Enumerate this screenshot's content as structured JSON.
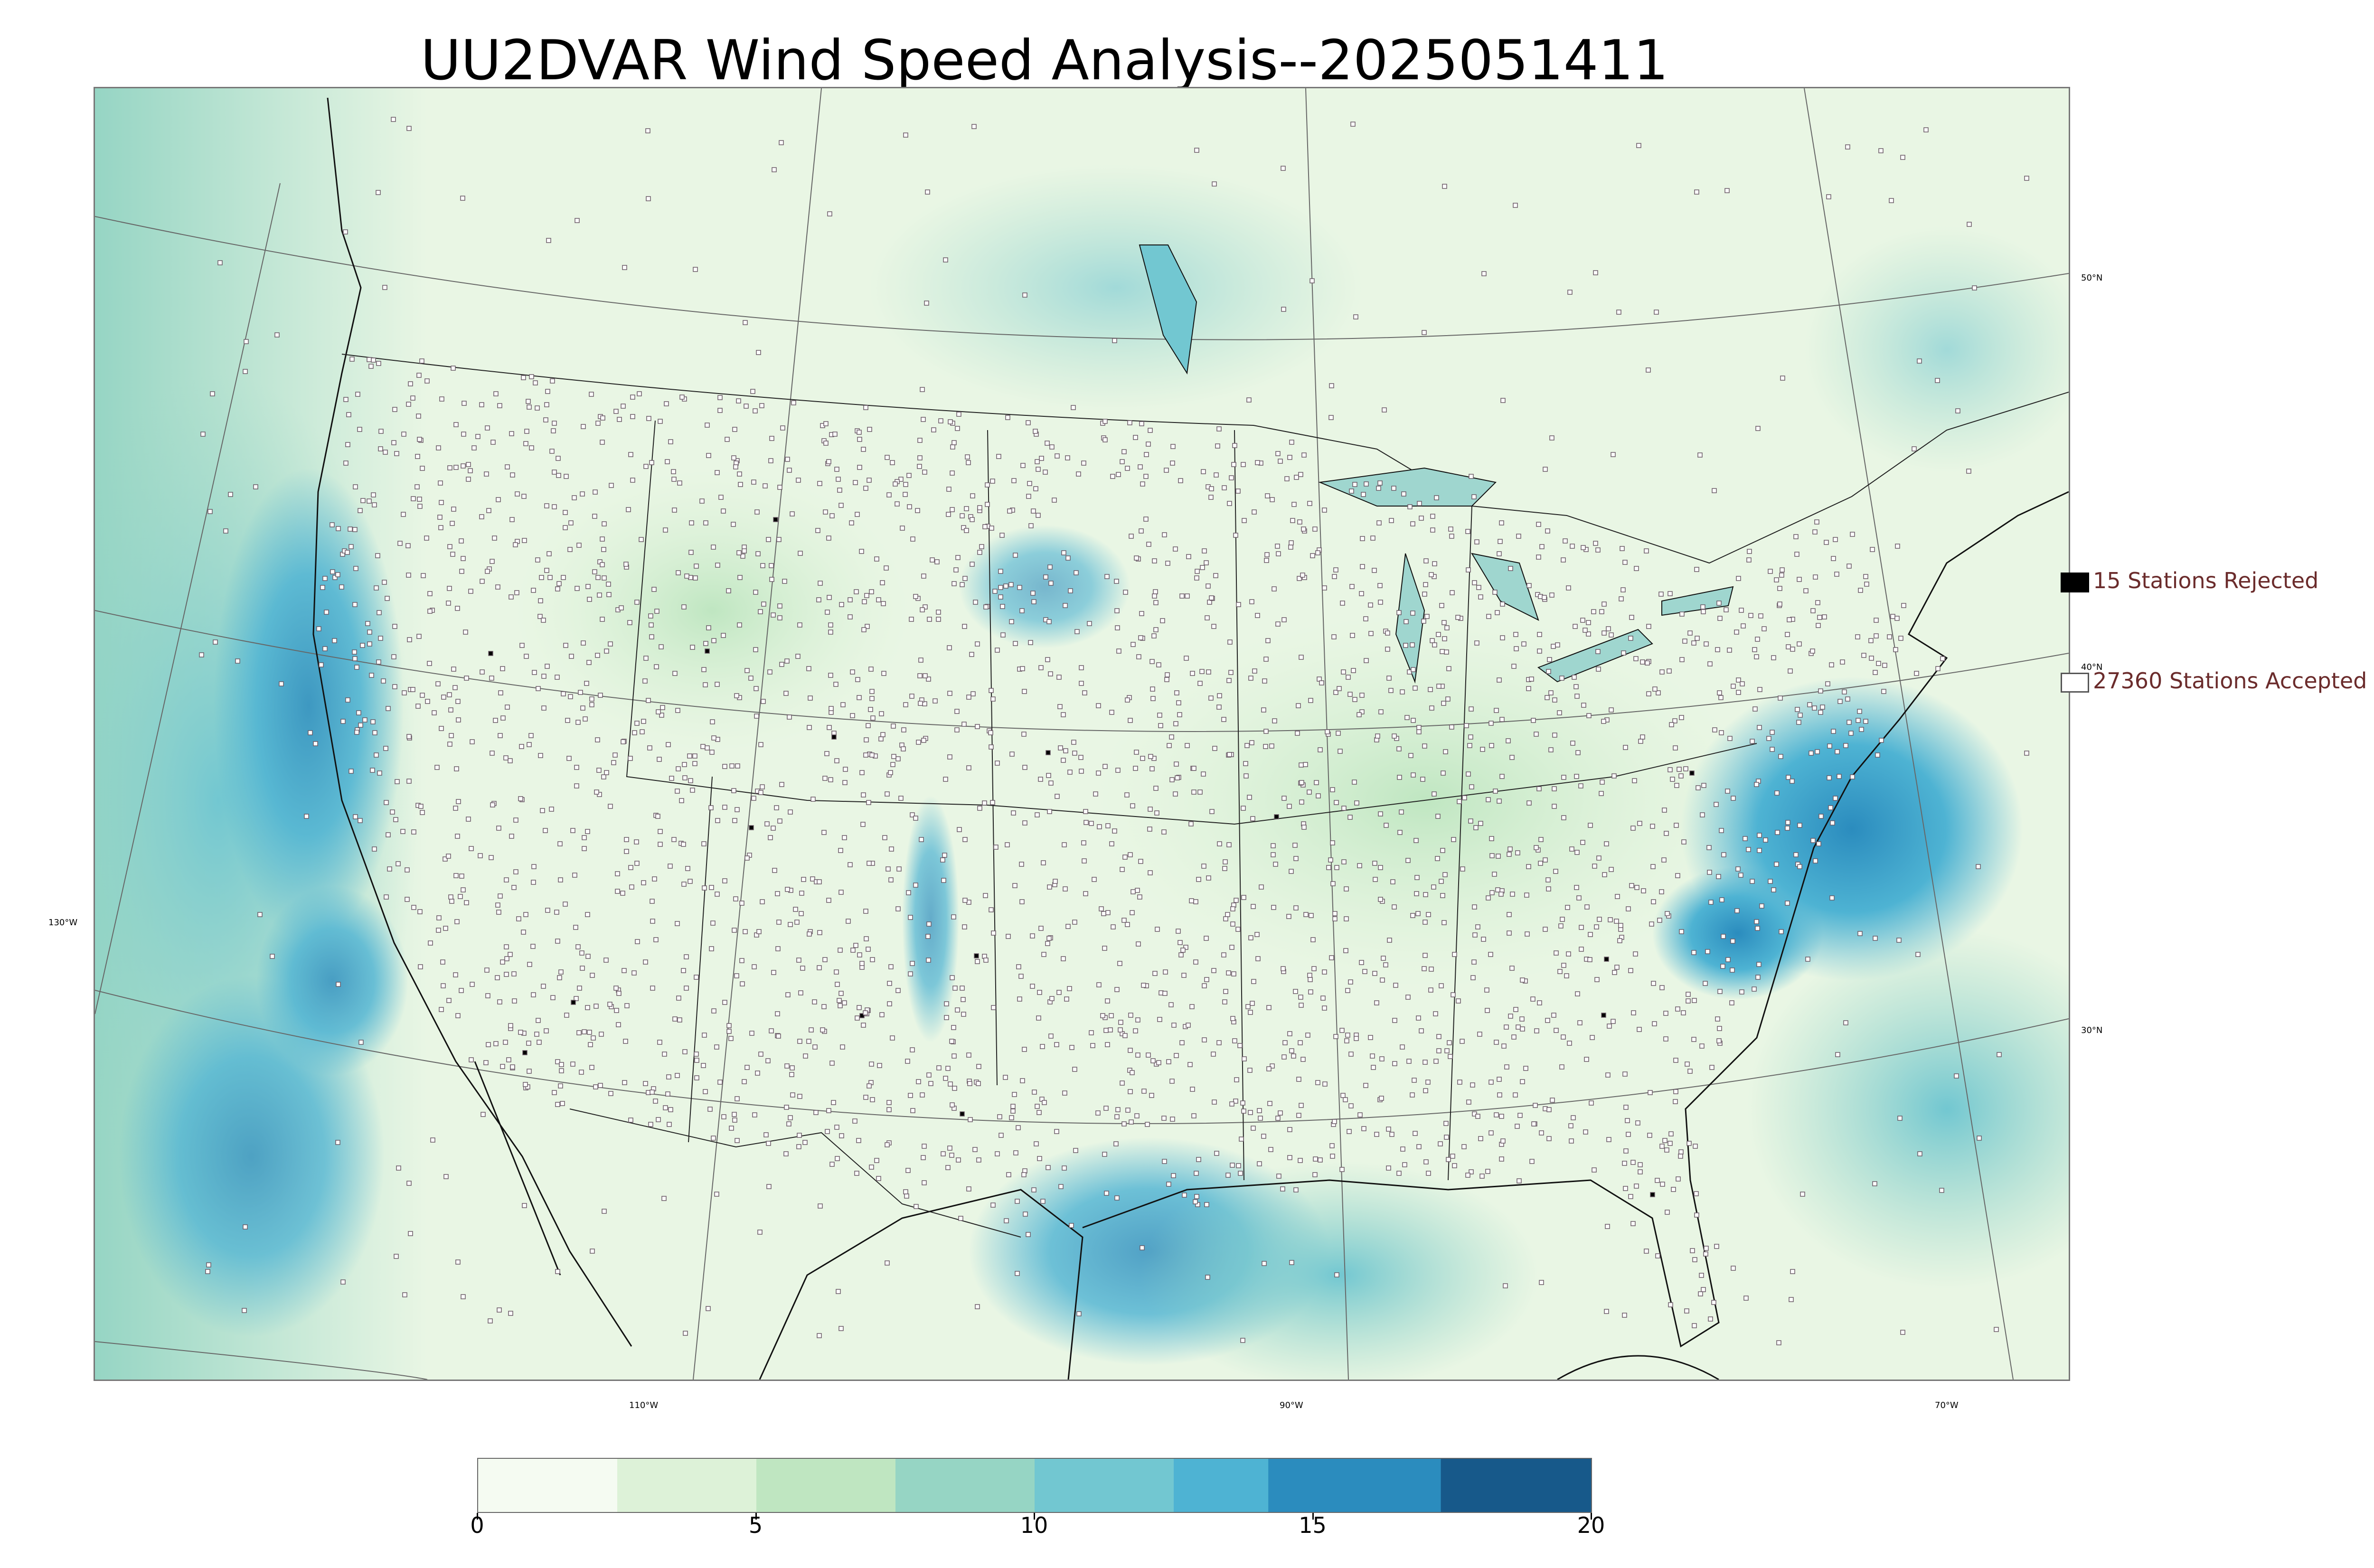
{
  "title": "UU2DVAR Wind Speed Analysis--2025051411",
  "legend": {
    "rejected": {
      "label": "15 Stations Rejected",
      "swatch_color": "#000000"
    },
    "accepted": {
      "label": "27360 Stations Accepted",
      "swatch_color": "#ffffff"
    }
  },
  "graticule": {
    "longitudes": [
      "130°W",
      "110°W",
      "90°W",
      "70°W"
    ],
    "latitudes": [
      "50°N",
      "40°N",
      "30°N"
    ]
  },
  "colorbar": {
    "ticks": [
      "0",
      "5",
      "10",
      "15",
      "20"
    ],
    "min": 0,
    "max": 20,
    "bins": [
      {
        "from": 0,
        "to": 2.5,
        "color": "#f5fbf2"
      },
      {
        "from": 2.5,
        "to": 5,
        "color": "#ddf2d8"
      },
      {
        "from": 5,
        "to": 7.5,
        "color": "#bfe6c1"
      },
      {
        "from": 7.5,
        "to": 10,
        "color": "#96d5c4"
      },
      {
        "from": 10,
        "to": 12.5,
        "color": "#72c7d1"
      },
      {
        "from": 12.5,
        "to": 14.2,
        "color": "#4eb3d3"
      },
      {
        "from": 14.2,
        "to": 17.3,
        "color": "#2b8cbe"
      },
      {
        "from": 17.3,
        "to": 20,
        "color": "#17598a"
      }
    ]
  },
  "colors": {
    "ocean_high": "#5bb7d6",
    "land_base": "#e9f6e4",
    "accepted_station": "#ffffff",
    "rejected_station": "#000000",
    "legend_text": "#6b2c2c"
  }
}
